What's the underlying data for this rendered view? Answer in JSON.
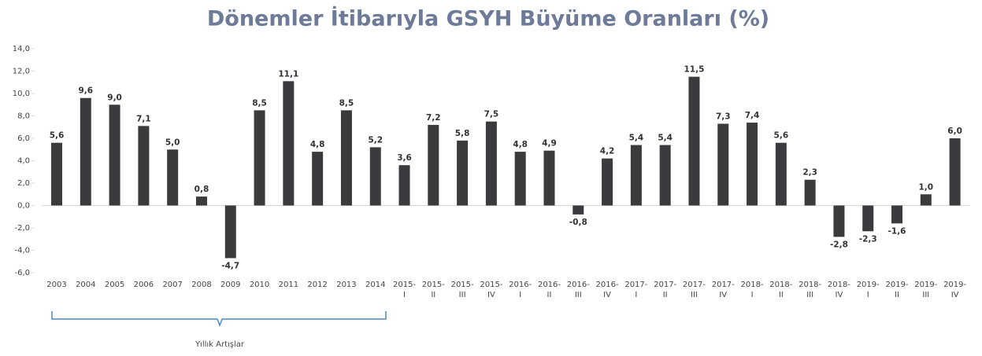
{
  "chart_data": {
    "type": "bar",
    "title": "Dönemler İtibarıyla GSYH Büyüme Oranları (%)",
    "categories": [
      "2003",
      "2004",
      "2005",
      "2006",
      "2007",
      "2008",
      "2009",
      "2010",
      "2011",
      "2012",
      "2013",
      "2014",
      "2015-I",
      "2015-II",
      "2015-III",
      "2015-IV",
      "2016-I",
      "2016-II",
      "2016-III",
      "2016-IV",
      "2017-I",
      "2017-II",
      "2017-III",
      "2017-IV",
      "2018-I",
      "2018-II",
      "2018-III",
      "2018-IV",
      "2019-I",
      "2019-II",
      "2019-III",
      "2019-IV"
    ],
    "values": [
      5.6,
      9.6,
      9.0,
      7.1,
      5.0,
      0.8,
      -4.7,
      8.5,
      11.1,
      4.8,
      8.5,
      5.2,
      3.6,
      7.2,
      5.8,
      7.5,
      4.8,
      4.9,
      -0.8,
      4.2,
      5.4,
      5.4,
      11.5,
      7.3,
      7.4,
      5.6,
      2.3,
      -2.8,
      -2.3,
      -1.6,
      1.0,
      6.0
    ],
    "value_labels": [
      "5,6",
      "9,6",
      "9,0",
      "7,1",
      "5,0",
      "0,8",
      "-4,7",
      "8,5",
      "11,1",
      "4,8",
      "8,5",
      "5,2",
      "3,6",
      "7,2",
      "5,8",
      "7,5",
      "4,8",
      "4,9",
      "-0,8",
      "4,2",
      "5,4",
      "5,4",
      "11,5",
      "7,3",
      "7,4",
      "5,6",
      "2,3",
      "-2,8",
      "-2,3",
      "-1,6",
      "1,0",
      "6,0"
    ],
    "color": "#3b3b3d",
    "ylim": [
      -6,
      14
    ],
    "yticks": [
      {
        "value": -6,
        "label": "-6,0"
      },
      {
        "value": -4,
        "label": "-4,0"
      },
      {
        "value": -2,
        "label": "-2,0"
      },
      {
        "value": 0,
        "label": "0,0"
      },
      {
        "value": 2,
        "label": "2,0"
      },
      {
        "value": 4,
        "label": "4,0"
      },
      {
        "value": 6,
        "label": "6,0"
      },
      {
        "value": 8,
        "label": "8,0"
      },
      {
        "value": 10,
        "label": "10,0"
      },
      {
        "value": 12,
        "label": "12,0"
      },
      {
        "value": 14,
        "label": "14,0"
      }
    ],
    "annotation": "Yıllık Artışlar"
  }
}
